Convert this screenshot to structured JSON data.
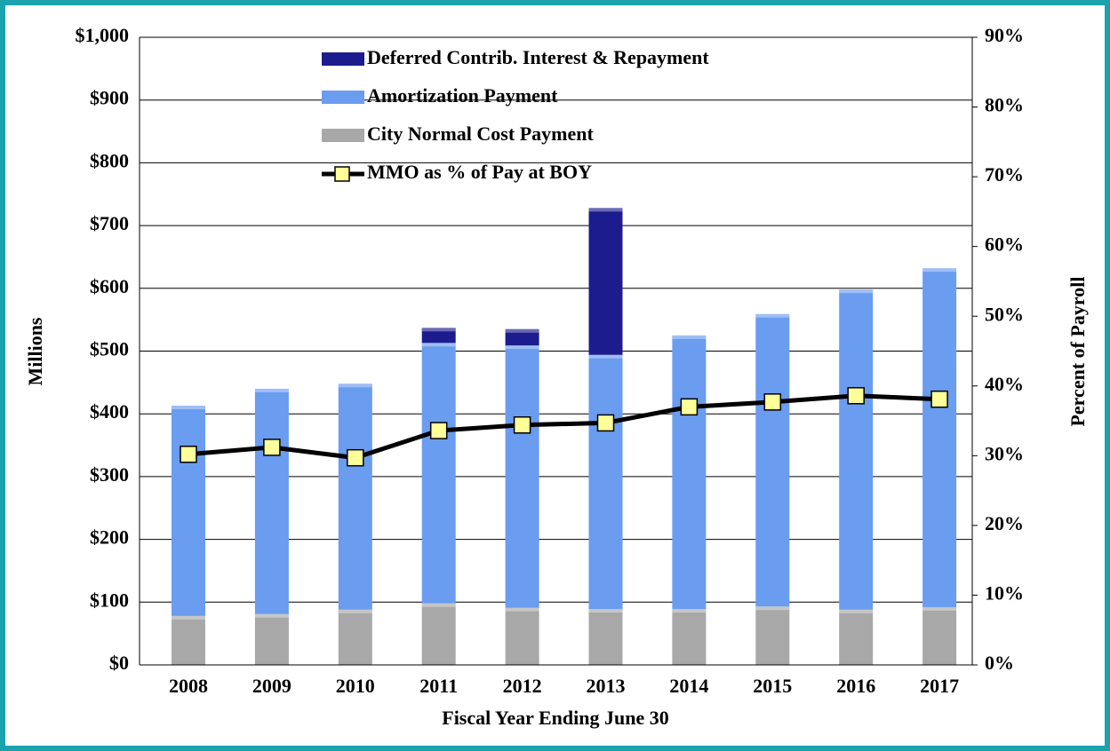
{
  "chart_data": {
    "type": "bar",
    "categories": [
      "2008",
      "2009",
      "2010",
      "2011",
      "2012",
      "2013",
      "2014",
      "2015",
      "2016",
      "2017"
    ],
    "series": [
      {
        "name": "City Normal Cost Payment",
        "color": "#a8a8a8",
        "values": [
          78,
          81,
          88,
          98,
          91,
          89,
          89,
          93,
          88,
          92
        ]
      },
      {
        "name": "Amortization Payment",
        "color": "#6a9cf0",
        "values": [
          335,
          359,
          360,
          415,
          418,
          405,
          436,
          466,
          510,
          540
        ]
      },
      {
        "name": "Deferred Contrib. Interest & Repayment",
        "color": "#1c1c8e",
        "values": [
          null,
          null,
          null,
          24,
          26,
          234,
          null,
          null,
          null,
          null
        ]
      },
      {
        "name": "MMO as % of Pay at BOY",
        "type": "line",
        "axis": "y2",
        "color": "#000000",
        "marker_color": "#ffff99",
        "values": [
          30.2,
          31.2,
          29.7,
          33.6,
          34.4,
          34.7,
          37.0,
          37.7,
          38.6,
          38.1
        ]
      }
    ],
    "stacked": true,
    "ylabel": "Millions",
    "y2label": "Percent of Payroll",
    "xlabel": "Fiscal Year Ending June 30",
    "ylim": [
      0,
      1000
    ],
    "yticks": [
      {
        "value": 0,
        "label": "$0"
      },
      {
        "value": 100,
        "label": "$100"
      },
      {
        "value": 200,
        "label": "$200"
      },
      {
        "value": 300,
        "label": "$300"
      },
      {
        "value": 400,
        "label": "$400"
      },
      {
        "value": 500,
        "label": "$500"
      },
      {
        "value": 600,
        "label": "$600"
      },
      {
        "value": 700,
        "label": "$700"
      },
      {
        "value": 800,
        "label": "$800"
      },
      {
        "value": 900,
        "label": "$900"
      },
      {
        "value": 1000,
        "label": "$1,000"
      }
    ],
    "y2lim": [
      0,
      90
    ],
    "y2ticks": [
      {
        "value": 0,
        "label": "0%"
      },
      {
        "value": 10,
        "label": "10%"
      },
      {
        "value": 20,
        "label": "20%"
      },
      {
        "value": 30,
        "label": "30%"
      },
      {
        "value": 40,
        "label": "40%"
      },
      {
        "value": 50,
        "label": "50%"
      },
      {
        "value": 60,
        "label": "60%"
      },
      {
        "value": 70,
        "label": "70%"
      },
      {
        "value": 80,
        "label": "80%"
      },
      {
        "value": 90,
        "label": "90%"
      }
    ],
    "grid": true,
    "legend": "top"
  }
}
